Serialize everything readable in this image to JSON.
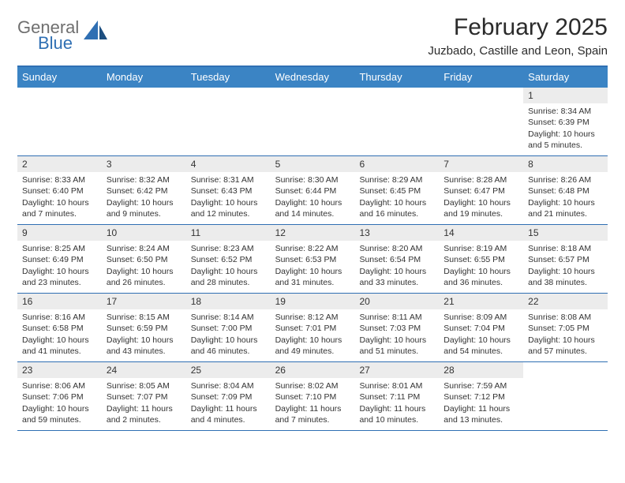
{
  "brand": {
    "top": "General",
    "bottom": "Blue"
  },
  "title": "February 2025",
  "location": "Juzbado, Castille and Leon, Spain",
  "colors": {
    "header_bg": "#3b84c4",
    "header_border": "#2f6fb3",
    "daynum_bg": "#ececec",
    "text": "#333333",
    "brand_top": "#6f6f6f",
    "brand_bottom": "#2f6fb3"
  },
  "weekdays": [
    "Sunday",
    "Monday",
    "Tuesday",
    "Wednesday",
    "Thursday",
    "Friday",
    "Saturday"
  ],
  "weeks": [
    [
      {
        "empty": true
      },
      {
        "empty": true
      },
      {
        "empty": true
      },
      {
        "empty": true
      },
      {
        "empty": true
      },
      {
        "empty": true
      },
      {
        "num": "1",
        "sunrise": "Sunrise: 8:34 AM",
        "sunset": "Sunset: 6:39 PM",
        "daylight1": "Daylight: 10 hours",
        "daylight2": "and 5 minutes."
      }
    ],
    [
      {
        "num": "2",
        "sunrise": "Sunrise: 8:33 AM",
        "sunset": "Sunset: 6:40 PM",
        "daylight1": "Daylight: 10 hours",
        "daylight2": "and 7 minutes."
      },
      {
        "num": "3",
        "sunrise": "Sunrise: 8:32 AM",
        "sunset": "Sunset: 6:42 PM",
        "daylight1": "Daylight: 10 hours",
        "daylight2": "and 9 minutes."
      },
      {
        "num": "4",
        "sunrise": "Sunrise: 8:31 AM",
        "sunset": "Sunset: 6:43 PM",
        "daylight1": "Daylight: 10 hours",
        "daylight2": "and 12 minutes."
      },
      {
        "num": "5",
        "sunrise": "Sunrise: 8:30 AM",
        "sunset": "Sunset: 6:44 PM",
        "daylight1": "Daylight: 10 hours",
        "daylight2": "and 14 minutes."
      },
      {
        "num": "6",
        "sunrise": "Sunrise: 8:29 AM",
        "sunset": "Sunset: 6:45 PM",
        "daylight1": "Daylight: 10 hours",
        "daylight2": "and 16 minutes."
      },
      {
        "num": "7",
        "sunrise": "Sunrise: 8:28 AM",
        "sunset": "Sunset: 6:47 PM",
        "daylight1": "Daylight: 10 hours",
        "daylight2": "and 19 minutes."
      },
      {
        "num": "8",
        "sunrise": "Sunrise: 8:26 AM",
        "sunset": "Sunset: 6:48 PM",
        "daylight1": "Daylight: 10 hours",
        "daylight2": "and 21 minutes."
      }
    ],
    [
      {
        "num": "9",
        "sunrise": "Sunrise: 8:25 AM",
        "sunset": "Sunset: 6:49 PM",
        "daylight1": "Daylight: 10 hours",
        "daylight2": "and 23 minutes."
      },
      {
        "num": "10",
        "sunrise": "Sunrise: 8:24 AM",
        "sunset": "Sunset: 6:50 PM",
        "daylight1": "Daylight: 10 hours",
        "daylight2": "and 26 minutes."
      },
      {
        "num": "11",
        "sunrise": "Sunrise: 8:23 AM",
        "sunset": "Sunset: 6:52 PM",
        "daylight1": "Daylight: 10 hours",
        "daylight2": "and 28 minutes."
      },
      {
        "num": "12",
        "sunrise": "Sunrise: 8:22 AM",
        "sunset": "Sunset: 6:53 PM",
        "daylight1": "Daylight: 10 hours",
        "daylight2": "and 31 minutes."
      },
      {
        "num": "13",
        "sunrise": "Sunrise: 8:20 AM",
        "sunset": "Sunset: 6:54 PM",
        "daylight1": "Daylight: 10 hours",
        "daylight2": "and 33 minutes."
      },
      {
        "num": "14",
        "sunrise": "Sunrise: 8:19 AM",
        "sunset": "Sunset: 6:55 PM",
        "daylight1": "Daylight: 10 hours",
        "daylight2": "and 36 minutes."
      },
      {
        "num": "15",
        "sunrise": "Sunrise: 8:18 AM",
        "sunset": "Sunset: 6:57 PM",
        "daylight1": "Daylight: 10 hours",
        "daylight2": "and 38 minutes."
      }
    ],
    [
      {
        "num": "16",
        "sunrise": "Sunrise: 8:16 AM",
        "sunset": "Sunset: 6:58 PM",
        "daylight1": "Daylight: 10 hours",
        "daylight2": "and 41 minutes."
      },
      {
        "num": "17",
        "sunrise": "Sunrise: 8:15 AM",
        "sunset": "Sunset: 6:59 PM",
        "daylight1": "Daylight: 10 hours",
        "daylight2": "and 43 minutes."
      },
      {
        "num": "18",
        "sunrise": "Sunrise: 8:14 AM",
        "sunset": "Sunset: 7:00 PM",
        "daylight1": "Daylight: 10 hours",
        "daylight2": "and 46 minutes."
      },
      {
        "num": "19",
        "sunrise": "Sunrise: 8:12 AM",
        "sunset": "Sunset: 7:01 PM",
        "daylight1": "Daylight: 10 hours",
        "daylight2": "and 49 minutes."
      },
      {
        "num": "20",
        "sunrise": "Sunrise: 8:11 AM",
        "sunset": "Sunset: 7:03 PM",
        "daylight1": "Daylight: 10 hours",
        "daylight2": "and 51 minutes."
      },
      {
        "num": "21",
        "sunrise": "Sunrise: 8:09 AM",
        "sunset": "Sunset: 7:04 PM",
        "daylight1": "Daylight: 10 hours",
        "daylight2": "and 54 minutes."
      },
      {
        "num": "22",
        "sunrise": "Sunrise: 8:08 AM",
        "sunset": "Sunset: 7:05 PM",
        "daylight1": "Daylight: 10 hours",
        "daylight2": "and 57 minutes."
      }
    ],
    [
      {
        "num": "23",
        "sunrise": "Sunrise: 8:06 AM",
        "sunset": "Sunset: 7:06 PM",
        "daylight1": "Daylight: 10 hours",
        "daylight2": "and 59 minutes."
      },
      {
        "num": "24",
        "sunrise": "Sunrise: 8:05 AM",
        "sunset": "Sunset: 7:07 PM",
        "daylight1": "Daylight: 11 hours",
        "daylight2": "and 2 minutes."
      },
      {
        "num": "25",
        "sunrise": "Sunrise: 8:04 AM",
        "sunset": "Sunset: 7:09 PM",
        "daylight1": "Daylight: 11 hours",
        "daylight2": "and 4 minutes."
      },
      {
        "num": "26",
        "sunrise": "Sunrise: 8:02 AM",
        "sunset": "Sunset: 7:10 PM",
        "daylight1": "Daylight: 11 hours",
        "daylight2": "and 7 minutes."
      },
      {
        "num": "27",
        "sunrise": "Sunrise: 8:01 AM",
        "sunset": "Sunset: 7:11 PM",
        "daylight1": "Daylight: 11 hours",
        "daylight2": "and 10 minutes."
      },
      {
        "num": "28",
        "sunrise": "Sunrise: 7:59 AM",
        "sunset": "Sunset: 7:12 PM",
        "daylight1": "Daylight: 11 hours",
        "daylight2": "and 13 minutes."
      },
      {
        "empty": true
      }
    ]
  ]
}
